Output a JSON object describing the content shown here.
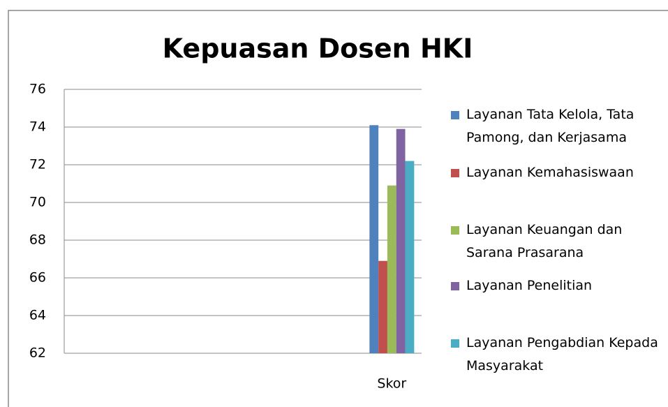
{
  "chart_data": {
    "type": "bar",
    "title": "Kepuasan Dosen HKI",
    "categories": [
      null,
      null,
      null,
      null,
      null,
      "Skor"
    ],
    "series": [
      {
        "name": "Layanan Tata Kelola, Tata Pamong, dan Kerjasama",
        "color": "#4f81bd",
        "values": [
          null,
          null,
          null,
          null,
          null,
          74.1
        ]
      },
      {
        "name": "Layanan Kemahasiswaan",
        "color": "#c0504d",
        "values": [
          null,
          null,
          null,
          null,
          null,
          66.9
        ]
      },
      {
        "name": "Layanan Keuangan dan Sarana Prasarana",
        "color": "#9bbb59",
        "values": [
          null,
          null,
          null,
          null,
          null,
          70.9
        ]
      },
      {
        "name": "Layanan Penelitian",
        "color": "#8064a2",
        "values": [
          null,
          null,
          null,
          null,
          null,
          73.9
        ]
      },
      {
        "name": "Layanan Pengabdian Kepada Masyarakat",
        "color": "#4bacc6",
        "values": [
          null,
          null,
          null,
          null,
          null,
          72.2
        ]
      }
    ],
    "ylim": [
      62,
      76
    ],
    "yticks": [
      62,
      64,
      66,
      68,
      70,
      72,
      74,
      76
    ],
    "grid": true,
    "legend": "right"
  }
}
